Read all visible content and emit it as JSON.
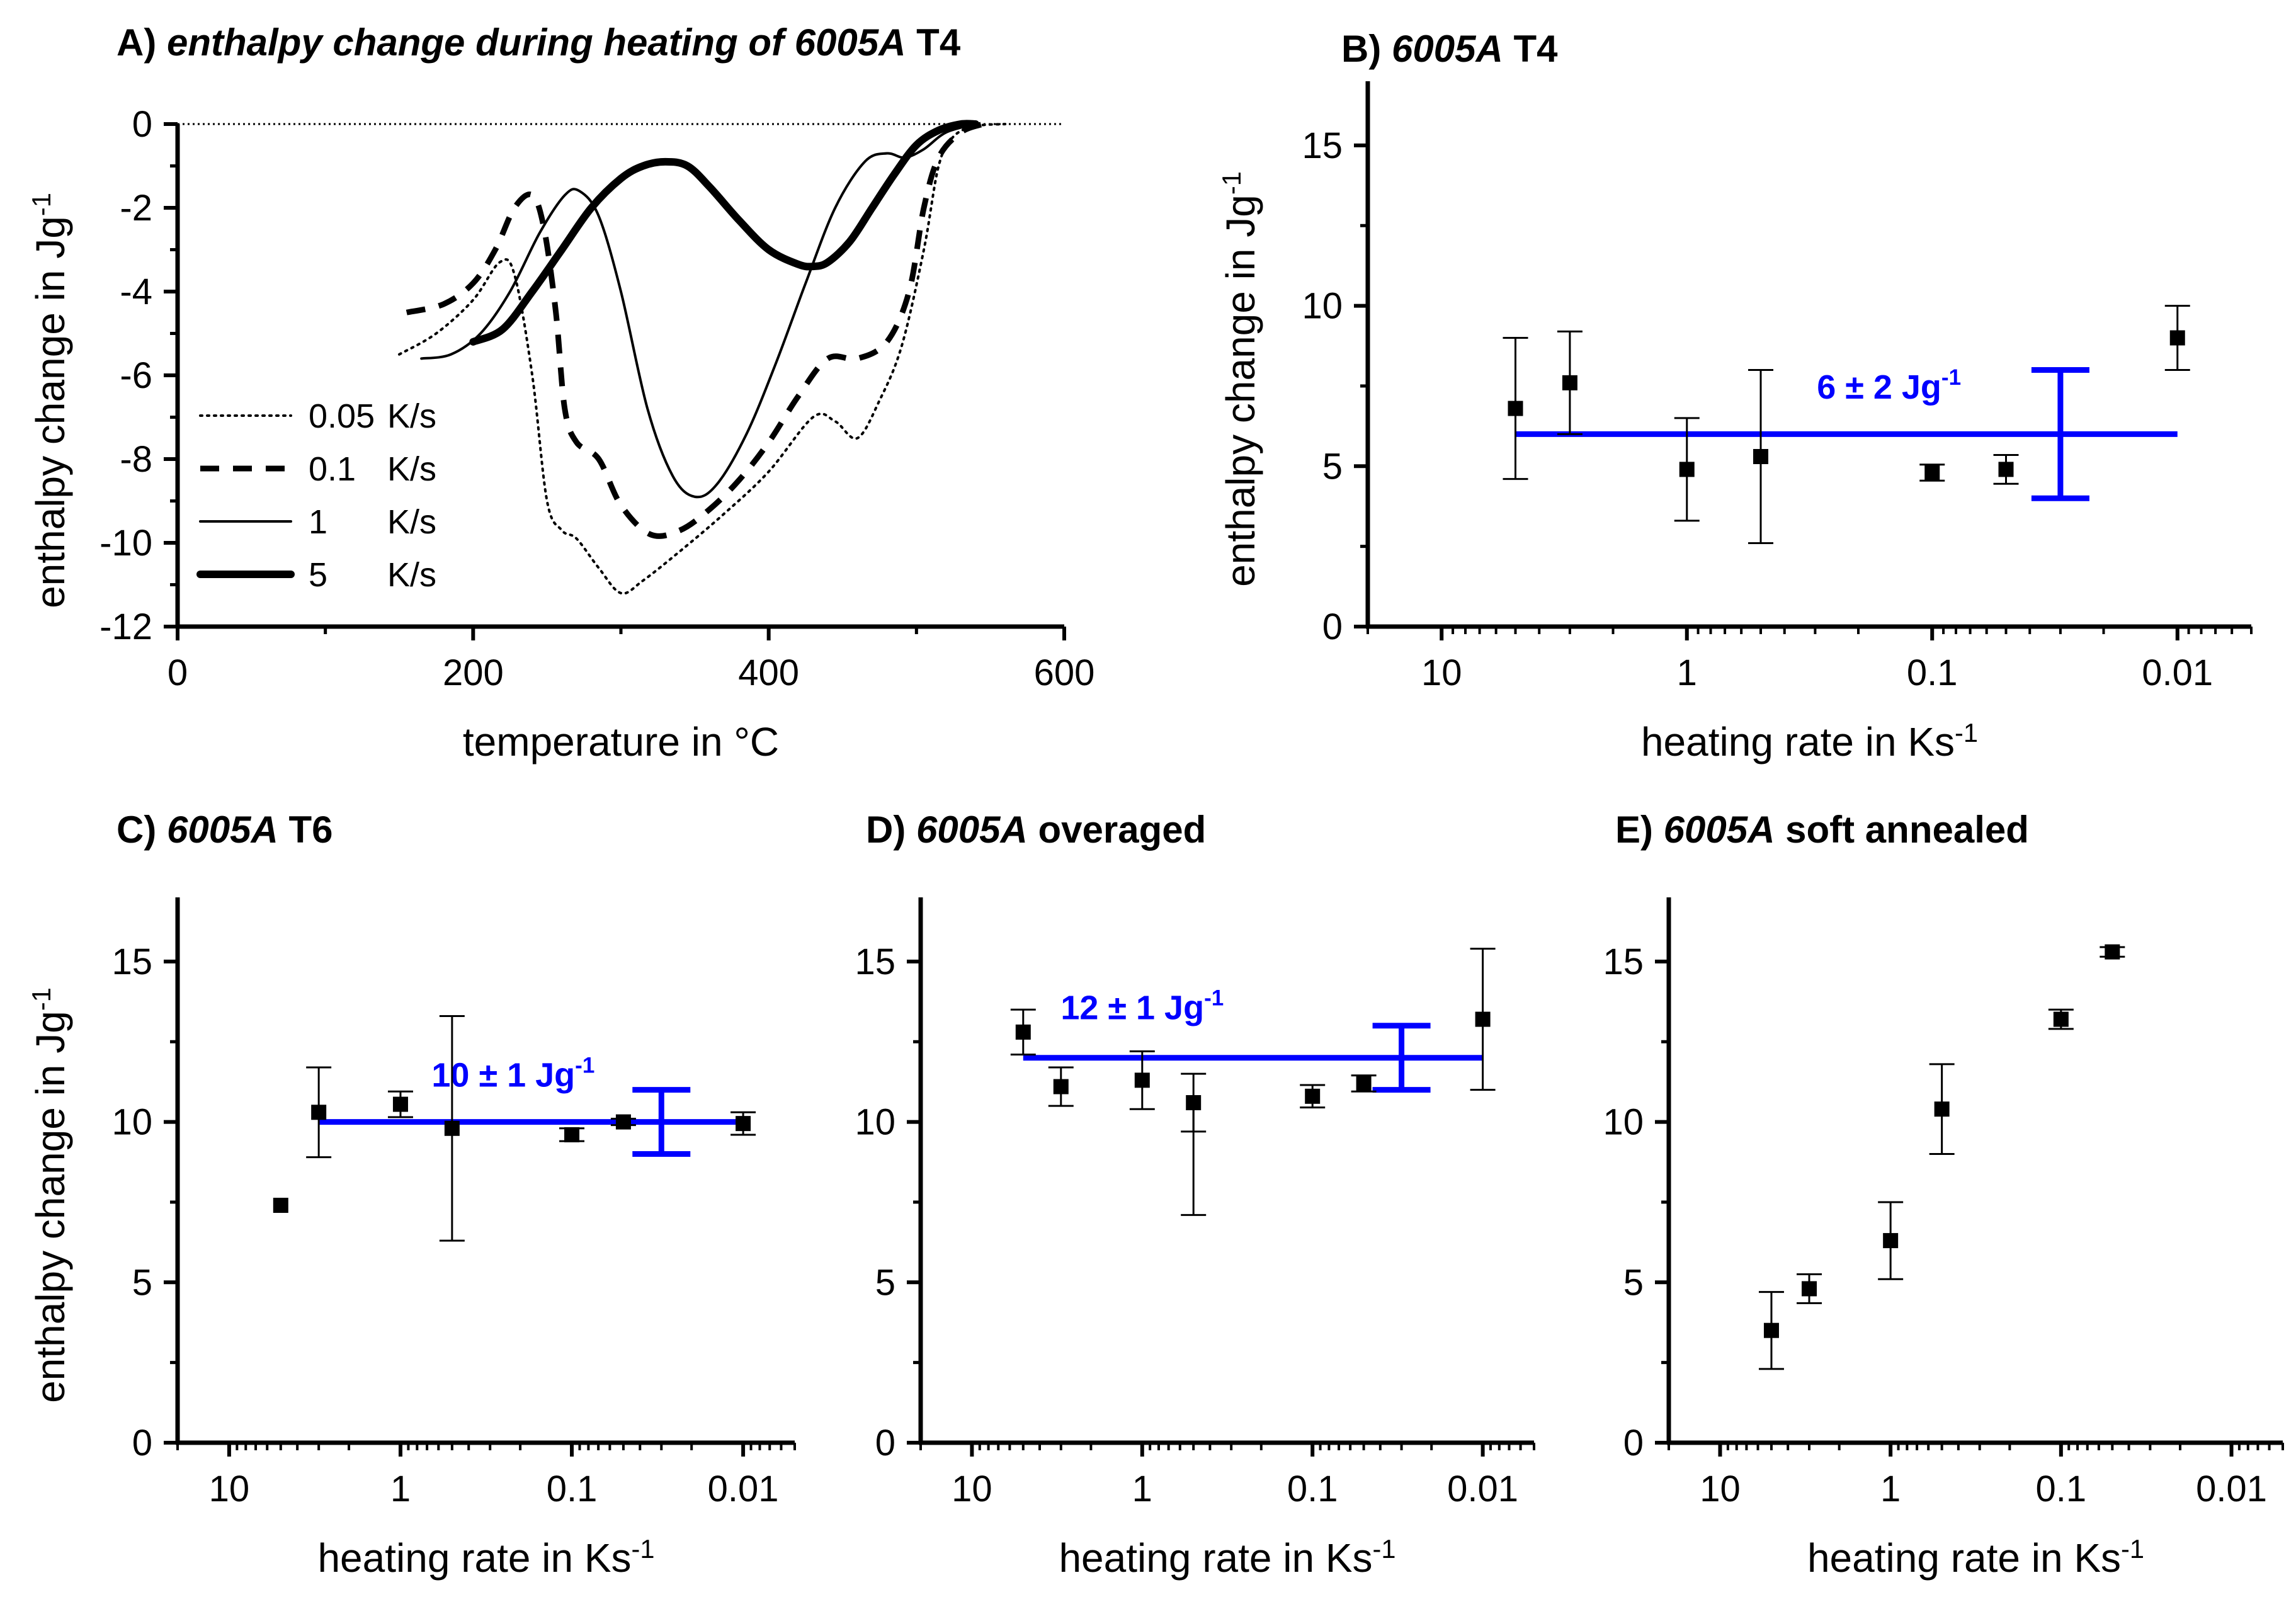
{
  "chart_data": [
    {
      "id": "A",
      "type": "line",
      "title_prefix": "A) ",
      "title_italic": "enthalpy change during heating of 6005A",
      "title_suffix": " T4",
      "xlabel": "temperature in °C",
      "ylabel": "enthalpy change in Jg",
      "ylabel_sup": "-1",
      "xlim": [
        0,
        600
      ],
      "ylim": [
        -12,
        0
      ],
      "xticks": [
        0,
        200,
        400,
        600
      ],
      "yticks": [
        0,
        -2,
        -4,
        -6,
        -8,
        -10,
        -12
      ],
      "reference_line": 0,
      "legend": [
        {
          "rate": "0.05",
          "unit": "K/s",
          "style": "dotted"
        },
        {
          "rate": "0.1",
          "unit": "K/s",
          "style": "dashed"
        },
        {
          "rate": "1",
          "unit": "K/s",
          "style": "thin"
        },
        {
          "rate": "5",
          "unit": "K/s",
          "style": "thick"
        }
      ],
      "series": [
        {
          "name": "0.05 K/s",
          "style": "dotted",
          "x": [
            150,
            175,
            200,
            218,
            228,
            240,
            250,
            260,
            270,
            285,
            300,
            315,
            340,
            370,
            400,
            430,
            445,
            460,
            475,
            490,
            505,
            515,
            525,
            540,
            560
          ],
          "y": [
            -5.5,
            -5.0,
            -4.2,
            -3.3,
            -3.6,
            -6.0,
            -9.0,
            -9.7,
            -9.9,
            -10.6,
            -11.2,
            -10.9,
            -10.2,
            -9.3,
            -8.3,
            -7.0,
            -7.1,
            -7.5,
            -6.6,
            -5.3,
            -3.0,
            -1.0,
            -0.3,
            -0.05,
            0
          ]
        },
        {
          "name": "0.1 K/s",
          "style": "dashed",
          "x": [
            155,
            180,
            200,
            215,
            228,
            240,
            248,
            256,
            262,
            270,
            285,
            300,
            320,
            340,
            360,
            380,
            400,
            420,
            440,
            460,
            480,
            495,
            505,
            515,
            530,
            545
          ],
          "y": [
            -4.5,
            -4.3,
            -3.8,
            -3.0,
            -2.0,
            -1.7,
            -2.5,
            -4.5,
            -6.8,
            -7.6,
            -8.0,
            -9.1,
            -9.8,
            -9.7,
            -9.2,
            -8.5,
            -7.6,
            -6.5,
            -5.6,
            -5.6,
            -5.2,
            -4.0,
            -2.0,
            -0.8,
            -0.2,
            0
          ]
        },
        {
          "name": "1 K/s",
          "style": "thin",
          "x": [
            165,
            185,
            205,
            225,
            245,
            262,
            272,
            285,
            300,
            318,
            335,
            350,
            365,
            385,
            405,
            425,
            445,
            465,
            480,
            492,
            505,
            520,
            540
          ],
          "y": [
            -5.6,
            -5.5,
            -5.0,
            -4.0,
            -2.6,
            -1.7,
            -1.6,
            -2.2,
            -4.0,
            -6.8,
            -8.4,
            -8.9,
            -8.6,
            -7.4,
            -5.7,
            -3.8,
            -2.0,
            -0.9,
            -0.7,
            -0.8,
            -0.6,
            -0.2,
            0
          ]
        },
        {
          "name": "5 K/s",
          "style": "thick",
          "x": [
            200,
            220,
            240,
            260,
            280,
            300,
            315,
            330,
            345,
            360,
            380,
            400,
            420,
            430,
            440,
            455,
            470,
            485,
            500,
            515,
            530,
            540
          ],
          "y": [
            -5.2,
            -4.9,
            -4.0,
            -3.0,
            -2.0,
            -1.3,
            -1.0,
            -0.9,
            -1.0,
            -1.5,
            -2.3,
            -3.0,
            -3.35,
            -3.4,
            -3.3,
            -2.8,
            -2.0,
            -1.2,
            -0.5,
            -0.15,
            0,
            0
          ]
        }
      ]
    },
    {
      "id": "B",
      "type": "scatter",
      "title_prefix": "B) ",
      "title_italic": "6005A",
      "title_suffix": " T4",
      "xlabel": "heating rate in Ks",
      "xlabel_sup": "-1",
      "ylabel": "enthalpy change in Jg",
      "ylabel_sup": "-1",
      "xscale": "log-reversed",
      "xlim": [
        20,
        0.005
      ],
      "ylim": [
        0,
        17
      ],
      "xticks": [
        {
          "v": 10,
          "label": "10"
        },
        {
          "v": 1,
          "label": "1"
        },
        {
          "v": 0.1,
          "label": "0.1"
        },
        {
          "v": 0.01,
          "label": "0.01"
        }
      ],
      "yticks": [
        0,
        5,
        10,
        15
      ],
      "points": [
        {
          "x": 5,
          "y": 6.8,
          "err": 2.2
        },
        {
          "x": 3,
          "y": 7.6,
          "err": 1.6
        },
        {
          "x": 1,
          "y": 4.9,
          "err": 1.6
        },
        {
          "x": 0.5,
          "y": 5.3,
          "err": 2.7
        },
        {
          "x": 0.1,
          "y": 4.8,
          "err": 0.25
        },
        {
          "x": 0.05,
          "y": 4.9,
          "err": 0.45
        },
        {
          "x": 0.01,
          "y": 9.0,
          "err": 1.0
        }
      ],
      "mean": {
        "value": 6,
        "error": 2,
        "x_from": 5,
        "x_to": 0.01,
        "bar_x": 0.03,
        "label": "6 ± 2 Jg",
        "label_sup": "-1",
        "label_x": 0.15,
        "label_y": 7.3
      }
    },
    {
      "id": "C",
      "type": "scatter",
      "title_prefix": "C) ",
      "title_italic": "6005A",
      "title_suffix": " T6",
      "xlabel": "heating rate in Ks",
      "xlabel_sup": "-1",
      "ylabel": "enthalpy change in Jg",
      "ylabel_sup": "-1",
      "xscale": "log-reversed",
      "xlim": [
        20,
        0.005
      ],
      "ylim": [
        0,
        17
      ],
      "xticks": [
        {
          "v": 10,
          "label": "10"
        },
        {
          "v": 1,
          "label": "1"
        },
        {
          "v": 0.1,
          "label": "0.1"
        },
        {
          "v": 0.01,
          "label": "0.01"
        }
      ],
      "yticks": [
        0,
        5,
        10,
        15
      ],
      "points": [
        {
          "x": 5,
          "y": 7.4,
          "err": 0
        },
        {
          "x": 3,
          "y": 10.3,
          "err": 1.4
        },
        {
          "x": 1,
          "y": 10.55,
          "err": 0.4
        },
        {
          "x": 0.5,
          "y": 9.8,
          "err": 3.5
        },
        {
          "x": 0.1,
          "y": 9.6,
          "err": 0.2
        },
        {
          "x": 0.05,
          "y": 10.0,
          "err": 0.1
        },
        {
          "x": 0.01,
          "y": 9.95,
          "err": 0.35
        }
      ],
      "mean": {
        "value": 10,
        "error": 1,
        "x_from": 3,
        "x_to": 0.01,
        "bar_x": 0.03,
        "label": "10 ± 1 Jg",
        "label_sup": "-1",
        "label_x": 0.22,
        "label_y": 11.3
      }
    },
    {
      "id": "D",
      "type": "scatter",
      "title_prefix": "D) ",
      "title_italic": "6005A",
      "title_suffix": " overaged",
      "xlabel": "heating rate in Ks",
      "xlabel_sup": "-1",
      "ylabel": "",
      "xscale": "log-reversed",
      "xlim": [
        20,
        0.005
      ],
      "ylim": [
        0,
        17
      ],
      "xticks": [
        {
          "v": 10,
          "label": "10"
        },
        {
          "v": 1,
          "label": "1"
        },
        {
          "v": 0.1,
          "label": "0.1"
        },
        {
          "v": 0.01,
          "label": "0.01"
        }
      ],
      "yticks": [
        0,
        5,
        10,
        15
      ],
      "points": [
        {
          "x": 5,
          "y": 12.8,
          "err": 0.7
        },
        {
          "x": 3,
          "y": 11.1,
          "err": 0.6
        },
        {
          "x": 1,
          "y": 11.3,
          "err": 0.9
        },
        {
          "x": 0.5,
          "y": 10.6,
          "err": 0.9
        },
        {
          "x": 0.1,
          "y": 10.8,
          "err": 0.35
        },
        {
          "x": 0.05,
          "y": 11.2,
          "err": 0.25
        },
        {
          "x": 0.01,
          "y": 13.2,
          "err": 2.2
        }
      ],
      "extra_lower_error": {
        "x": 0.5,
        "low": 7.1
      },
      "mean": {
        "value": 12,
        "error": 1,
        "x_from": 5,
        "x_to": 0.01,
        "bar_x": 0.03,
        "label": "12 ± 1 Jg",
        "label_sup": "-1",
        "label_x": 1.0,
        "label_y": 13.4
      }
    },
    {
      "id": "E",
      "type": "scatter",
      "title_prefix": "E) ",
      "title_italic": "6005A",
      "title_suffix": " soft annealed",
      "xlabel": "heating rate in Ks",
      "xlabel_sup": "-1",
      "ylabel": "",
      "xscale": "log-reversed",
      "xlim": [
        20,
        0.005
      ],
      "ylim": [
        0,
        17
      ],
      "xticks": [
        {
          "v": 10,
          "label": "10"
        },
        {
          "v": 1,
          "label": "1"
        },
        {
          "v": 0.1,
          "label": "0.1"
        },
        {
          "v": 0.01,
          "label": "0.01"
        }
      ],
      "yticks": [
        0,
        5,
        10,
        15
      ],
      "points": [
        {
          "x": 5,
          "y": 3.5,
          "err": 1.2
        },
        {
          "x": 3,
          "y": 4.8,
          "err": 0.45
        },
        {
          "x": 1,
          "y": 6.3,
          "err": 1.2
        },
        {
          "x": 0.5,
          "y": 10.4,
          "err": 1.4
        },
        {
          "x": 0.1,
          "y": 13.2,
          "err": 0.3
        },
        {
          "x": 0.05,
          "y": 15.3,
          "err": 0.15
        }
      ]
    }
  ]
}
